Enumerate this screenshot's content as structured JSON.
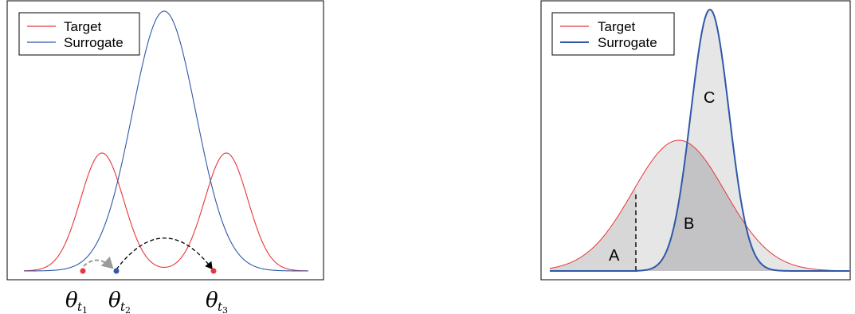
{
  "left_panel": {
    "legend": [
      {
        "label": "Target",
        "color": "#e8363a"
      },
      {
        "label": "Surrogate",
        "color": "#2f58a8"
      }
    ],
    "points": [
      {
        "symbol": "θ",
        "sub": "t",
        "subsub": "1",
        "color": "#e8363a"
      },
      {
        "symbol": "θ",
        "sub": "t",
        "subsub": "2",
        "color": "#2f58a8"
      },
      {
        "symbol": "θ",
        "sub": "t",
        "subsub": "3",
        "color": "#e8363a"
      }
    ]
  },
  "right_panel": {
    "legend": [
      {
        "label": "Target",
        "color": "#e8363a"
      },
      {
        "label": "Surrogate",
        "color": "#2f58a8"
      }
    ],
    "regions": [
      {
        "label": "A",
        "fill": "#e6e6e6"
      },
      {
        "label": "B",
        "fill": "#c3c3c5"
      },
      {
        "label": "C",
        "fill": "#e6e6e6"
      }
    ]
  },
  "colors": {
    "target": "#e8363a",
    "surrogate": "#2f58a8",
    "frame": "#000000"
  }
}
